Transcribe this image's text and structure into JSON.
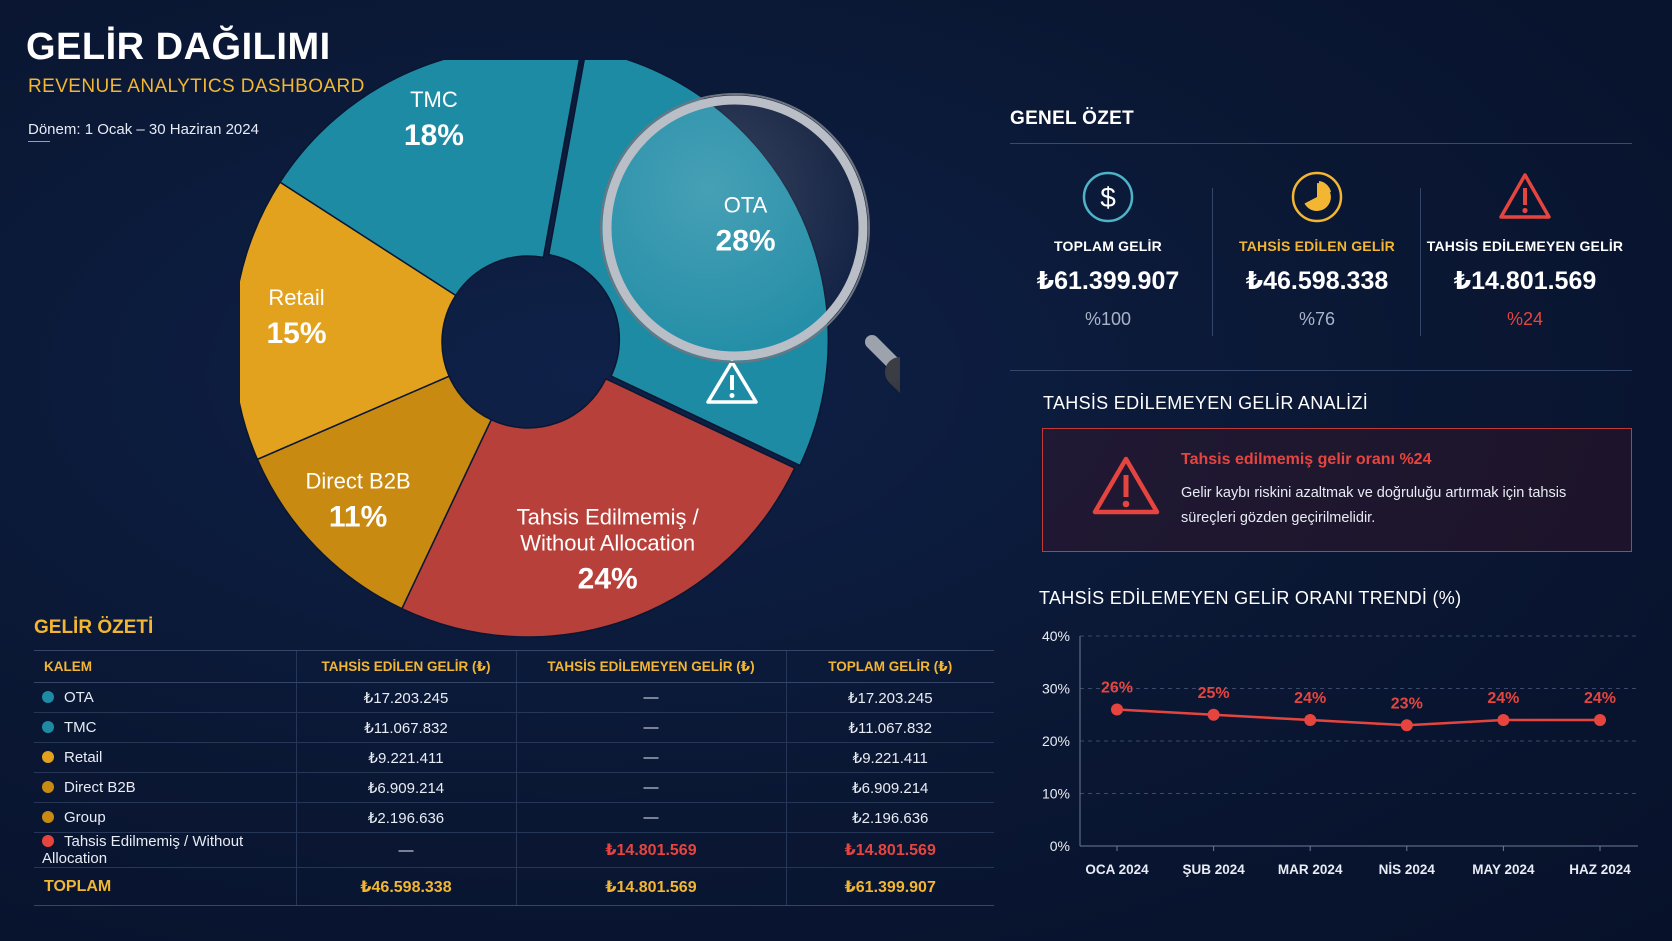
{
  "header": {
    "title": "GELİR DAĞILIMI",
    "subtitle": "REVENUE ANALYTICS DASHBOARD",
    "period": "Dönem: 1 Ocak – 30 Haziran 2024"
  },
  "colors": {
    "ota": "#1e8ba5",
    "tmc": "#1e8ba5",
    "retail": "#e3a21e",
    "direct_b2b": "#c98a12",
    "unallocated": "#b8403a",
    "accent_gold": "#f2b632",
    "accent_red": "#e6453f"
  },
  "summary": {
    "title": "GENEL ÖZET",
    "cards": [
      {
        "icon": "dollar-icon",
        "label": "TOPLAM GELİR",
        "value": "₺61.399.907",
        "pct": "%100"
      },
      {
        "icon": "pie-chart-icon",
        "label": "TAHSİS EDİLEN GELİR",
        "value": "₺46.598.338",
        "pct": "%76"
      },
      {
        "icon": "warning-icon",
        "label": "TAHSİS EDİLEMEYEN GELİR",
        "value": "₺14.801.569",
        "pct": "%24"
      }
    ]
  },
  "analysis": {
    "title": "TAHSİS EDİLEMEYEN GELİR ANALİZİ",
    "alert_title": "Tahsis edilmemiş gelir oranı %24",
    "alert_text": "Gelir kaybı riskini azaltmak ve doğruluğu artırmak için tahsis süreçleri gözden geçirilmelidir."
  },
  "table": {
    "title": "GELİR ÖZETİ",
    "headers": [
      "KALEM",
      "TAHSİS EDİLEN GELİR (₺)",
      "TAHSİS EDİLEMEYEN GELİR (₺)",
      "TOPLAM GELİR (₺)"
    ],
    "rows": [
      {
        "name": "OTA",
        "color": "#1e8ba5",
        "allocated": "₺17.203.245",
        "unallocated": "—",
        "total": "₺17.203.245"
      },
      {
        "name": "TMC",
        "color": "#1e8ba5",
        "allocated": "₺11.067.832",
        "unallocated": "—",
        "total": "₺11.067.832"
      },
      {
        "name": "Retail",
        "color": "#e3a21e",
        "allocated": "₺9.221.411",
        "unallocated": "—",
        "total": "₺9.221.411"
      },
      {
        "name": "Direct B2B",
        "color": "#c98a12",
        "allocated": "₺6.909.214",
        "unallocated": "—",
        "total": "₺6.909.214"
      },
      {
        "name": "Group",
        "color": "#c98a12",
        "allocated": "₺2.196.636",
        "unallocated": "—",
        "total": "₺2.196.636"
      },
      {
        "name": "Tahsis Edilmemiş / Without Allocation",
        "color": "#e6453f",
        "allocated": "—",
        "unallocated": "₺14.801.569",
        "total": "₺14.801.569"
      }
    ],
    "total": {
      "name": "TOPLAM",
      "allocated": "₺46.598.338",
      "unallocated": "₺14.801.569",
      "total": "₺61.399.907"
    }
  },
  "chart_data": [
    {
      "type": "pie",
      "title": "",
      "slices": [
        {
          "label": "OTA",
          "value": 28,
          "value_label": "28%",
          "color": "#1e8ba5"
        },
        {
          "label": "Tahsis Edilmemiş / Without Allocation",
          "label_lines": [
            "Tahsis Edilmemiş /",
            "Without Allocation"
          ],
          "value": 24,
          "value_label": "24%",
          "color": "#b8403a"
        },
        {
          "label": "Direct B2B",
          "value": 11,
          "value_label": "11%",
          "color": "#c98a12"
        },
        {
          "label": "Retail",
          "value": 15,
          "value_label": "15%",
          "color": "#e3a21e"
        },
        {
          "label": "TMC",
          "value": 18,
          "value_label": "18%",
          "color": "#1e8ba5"
        }
      ]
    },
    {
      "type": "line",
      "title": "TAHSİS EDİLEMEYEN GELİR ORANI TRENDİ (%)",
      "categories": [
        "OCA 2024",
        "ŞUB 2024",
        "MAR 2024",
        "NİS 2024",
        "MAY 2024",
        "HAZ 2024"
      ],
      "series": [
        {
          "values": [
            26,
            25,
            24,
            23,
            24,
            24
          ],
          "value_labels": [
            "26%",
            "25%",
            "24%",
            "23%",
            "24%",
            "24%"
          ],
          "color": "#e6453f"
        }
      ],
      "ylim": [
        0,
        40
      ],
      "yticks": [
        "0%",
        "10%",
        "20%",
        "30%",
        "40%"
      ],
      "grid": true
    }
  ]
}
